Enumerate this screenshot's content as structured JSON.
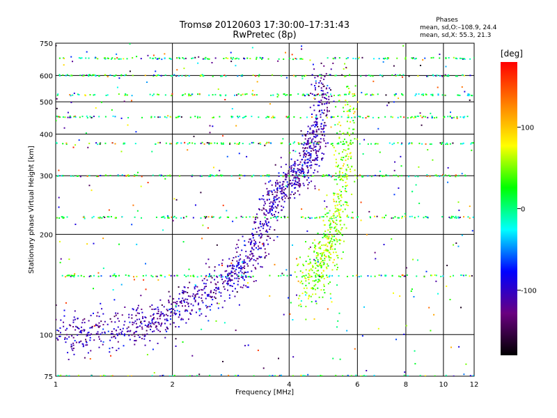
{
  "chart_data": {
    "type": "scatter",
    "title": "Tromsø 20120603 17:30:00–17:31:43",
    "subtitle": "RwPretec (8p)",
    "xlabel": "Frequency [MHz]",
    "ylabel": "Stationary phase Virtual Height [km]",
    "x_scale": "log",
    "y_scale": "log",
    "xlim": [
      1,
      12
    ],
    "ylim": [
      75,
      750
    ],
    "x_ticks": [
      1,
      2,
      4,
      6,
      8,
      10,
      12
    ],
    "y_ticks": [
      75,
      100,
      200,
      300,
      400,
      500,
      600,
      750
    ],
    "grid": true,
    "phases_box": {
      "title": "Phases",
      "line1": "mean, sd,O:–108.9, 24.4",
      "line2": "mean, sd,X:  55.3, 21.3"
    },
    "colorbar": {
      "label": "[deg]",
      "range": [
        -180,
        180
      ],
      "ticks": [
        100,
        0,
        -100
      ],
      "colors": [
        "#000000",
        "#6a0080",
        "#0000ff",
        "#00ffff",
        "#00ff00",
        "#ffff00",
        "#ff8000",
        "#ff0000"
      ]
    },
    "band_heights_km": [
      75,
      150,
      225,
      300,
      375,
      450,
      525,
      600,
      675
    ],
    "o_trace": {
      "name": "O",
      "phase_deg": -108.9,
      "x": [
        1.05,
        1.2,
        1.4,
        1.6,
        1.8,
        2.0,
        2.2,
        2.5,
        2.8,
        3.0,
        3.2,
        3.4,
        3.6,
        3.8,
        4.0,
        4.2,
        4.4,
        4.6,
        4.7,
        4.8,
        4.85
      ],
      "y": [
        102,
        101,
        103,
        106,
        110,
        118,
        125,
        135,
        145,
        155,
        170,
        200,
        245,
        275,
        290,
        305,
        325,
        360,
        400,
        480,
        620
      ]
    },
    "x_trace": {
      "name": "X",
      "phase_deg": 55.3,
      "x": [
        4.3,
        4.6,
        4.9,
        5.1,
        5.3,
        5.5,
        5.6,
        5.7
      ],
      "y": [
        140,
        150,
        165,
        185,
        220,
        280,
        380,
        550
      ]
    }
  }
}
